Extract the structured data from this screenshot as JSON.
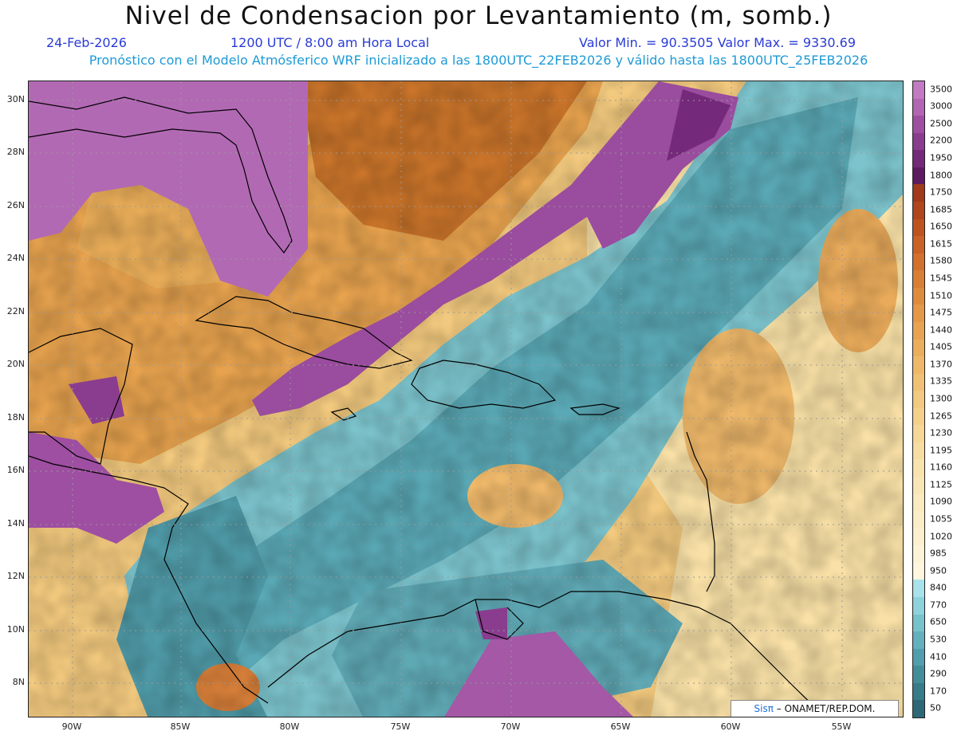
{
  "header": {
    "title": "Nivel de Condensacion por Levantamiento (m, somb.)",
    "date": "24-Feb-2026",
    "time": "1200 UTC / 8:00 am Hora Local",
    "min_max": "Valor Min. = 90.3505  Valor Max. = 9330.69",
    "forecast_note": "Pronóstico con el Modelo Atmósferico WRF inicializado a las 1800UTC_22FEB2026 y válido hasta las  1800UTC_25FEB2026"
  },
  "map": {
    "lat_labels": [
      "30N",
      "28N",
      "26N",
      "24N",
      "22N",
      "20N",
      "18N",
      "16N",
      "14N",
      "12N",
      "10N",
      "8N"
    ],
    "lon_labels": [
      "90W",
      "85W",
      "80W",
      "75W",
      "70W",
      "65W",
      "60W",
      "55W"
    ]
  },
  "colorbar": {
    "labels": [
      "3500",
      "3000",
      "2500",
      "2200",
      "1950",
      "1800",
      "1750",
      "1685",
      "1650",
      "1615",
      "1580",
      "1545",
      "1510",
      "1475",
      "1440",
      "1405",
      "1370",
      "1335",
      "1300",
      "1265",
      "1230",
      "1195",
      "1160",
      "1125",
      "1090",
      "1055",
      "1020",
      "985",
      "950",
      "840",
      "770",
      "650",
      "530",
      "410",
      "290",
      "170",
      "50"
    ],
    "colors": [
      "#c27ac2",
      "#b165b3",
      "#9e4fa2",
      "#8a3d8e",
      "#74297a",
      "#5e1a60",
      "#a03a1a",
      "#b0461c",
      "#bd5420",
      "#c86226",
      "#d2702d",
      "#d97e35",
      "#df8b3e",
      "#e49848",
      "#e8a352",
      "#ebae5d",
      "#eeb868",
      "#f0c174",
      "#f2c980",
      "#f4d08b",
      "#f6d797",
      "#f7dda2",
      "#f8e2ad",
      "#f9e6b6",
      "#faeabf",
      "#fbedc7",
      "#fcf0cf",
      "#fdf3d7",
      "#fef6df",
      "#a8e2ea",
      "#8ed2db",
      "#78c2cc",
      "#63b1bd",
      "#519fac",
      "#438d9b",
      "#387b89",
      "#2e6876"
    ]
  },
  "credit": {
    "sis": "Sisπ",
    "text": "– ONAMET/REP.DOM."
  }
}
